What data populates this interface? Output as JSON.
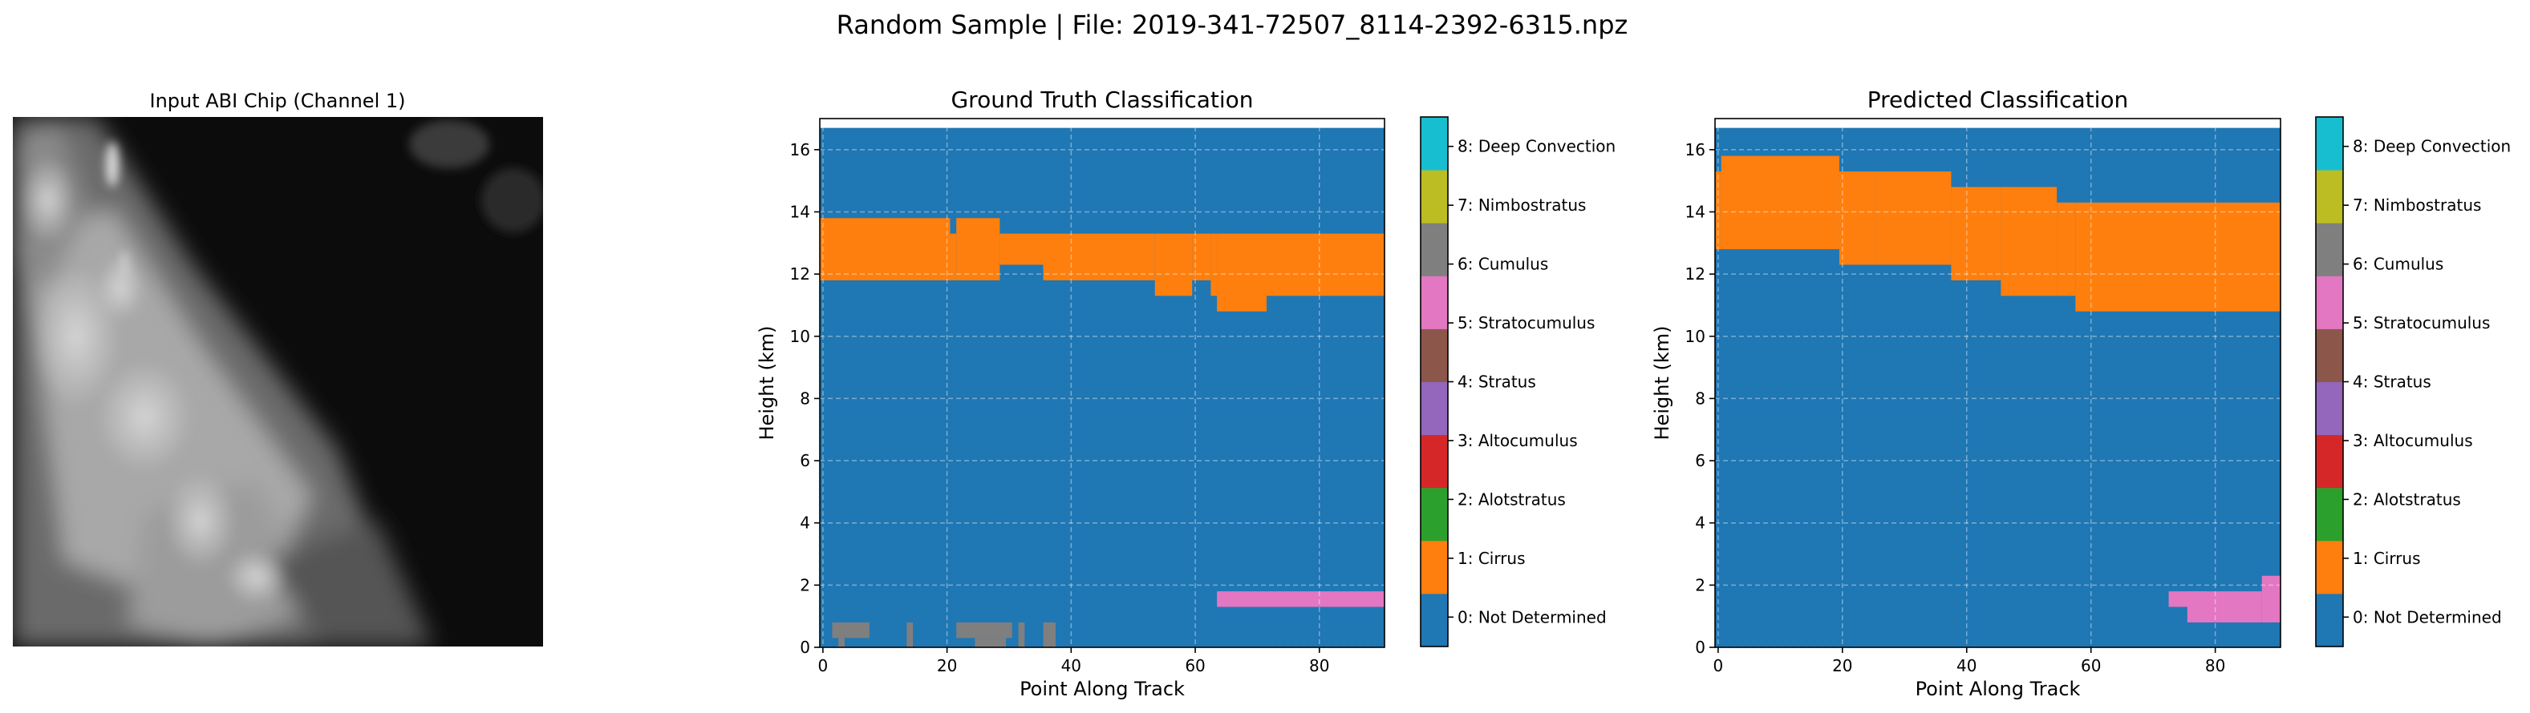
{
  "suptitle": "Random Sample | File: 2019-341-72507_8114-2392-6315.npz",
  "input_panel": {
    "title": "Input ABI Chip (Channel 1)",
    "colormap": "gray"
  },
  "class_colors": [
    "#1f77b4",
    "#ff7f0e",
    "#2ca02c",
    "#d62728",
    "#9467bd",
    "#8c564b",
    "#e377c2",
    "#7f7f7f",
    "#bcbd22",
    "#17becf"
  ],
  "colorbar_labels": [
    "0: Not Determined",
    "1: Cirrus",
    "2: Alotstratus",
    "3: Altocumulus",
    "4: Stratus",
    "5: Stratocumulus",
    "6: Cumulus",
    "7: Nimbostratus",
    "8: Deep Convection"
  ],
  "chart_data": [
    {
      "type": "heatmap",
      "title": "Ground Truth Classification",
      "xlabel": "Point Along Track",
      "ylabel": "Height (km)",
      "xlim": [
        -0.5,
        90.5
      ],
      "ylim": [
        0,
        17
      ],
      "xticks": [
        0,
        20,
        40,
        60,
        80
      ],
      "yticks": [
        0,
        2,
        4,
        6,
        8,
        10,
        12,
        14,
        16
      ],
      "xtick_labels": [
        "0",
        "20",
        "40",
        "60",
        "80"
      ],
      "ytick_labels": [
        "0",
        "2",
        "4",
        "6",
        "8",
        "10",
        "12",
        "14",
        "16"
      ],
      "grid": true,
      "background_class": 0,
      "top_height_km": 16.7,
      "regions": [
        {
          "class": 1,
          "x0": -0.5,
          "x1": 20.5,
          "y0": 11.8,
          "y1": 13.8
        },
        {
          "class": 1,
          "x0": 20.5,
          "x1": 21.5,
          "y0": 11.8,
          "y1": 13.3
        },
        {
          "class": 1,
          "x0": 21.5,
          "x1": 28.5,
          "y0": 11.8,
          "y1": 13.8
        },
        {
          "class": 1,
          "x0": 28.5,
          "x1": 35.5,
          "y0": 12.3,
          "y1": 13.3
        },
        {
          "class": 1,
          "x0": 35.5,
          "x1": 53.5,
          "y0": 11.8,
          "y1": 13.3
        },
        {
          "class": 1,
          "x0": 53.5,
          "x1": 59.5,
          "y0": 11.3,
          "y1": 13.3
        },
        {
          "class": 1,
          "x0": 59.5,
          "x1": 62.5,
          "y0": 11.8,
          "y1": 13.3
        },
        {
          "class": 1,
          "x0": 62.5,
          "x1": 63.5,
          "y0": 11.3,
          "y1": 13.3
        },
        {
          "class": 1,
          "x0": 63.5,
          "x1": 71.5,
          "y0": 10.8,
          "y1": 13.3
        },
        {
          "class": 1,
          "x0": 71.5,
          "x1": 90.5,
          "y0": 11.3,
          "y1": 13.3
        },
        {
          "class": 6,
          "x0": 63.5,
          "x1": 90.5,
          "y0": 1.3,
          "y1": 1.8
        },
        {
          "class": 7,
          "x0": 1.5,
          "x1": 7.5,
          "y0": 0.3,
          "y1": 0.8
        },
        {
          "class": 7,
          "x0": 2.5,
          "x1": 3.5,
          "y0": 0.0,
          "y1": 0.3
        },
        {
          "class": 7,
          "x0": 13.5,
          "x1": 14.5,
          "y0": 0.0,
          "y1": 0.8
        },
        {
          "class": 7,
          "x0": 21.5,
          "x1": 30.5,
          "y0": 0.3,
          "y1": 0.8
        },
        {
          "class": 7,
          "x0": 24.5,
          "x1": 29.5,
          "y0": 0.0,
          "y1": 0.3
        },
        {
          "class": 7,
          "x0": 31.5,
          "x1": 32.5,
          "y0": 0.0,
          "y1": 0.8
        },
        {
          "class": 7,
          "x0": 35.5,
          "x1": 37.5,
          "y0": 0.0,
          "y1": 0.8
        }
      ]
    },
    {
      "type": "heatmap",
      "title": "Predicted Classification",
      "xlabel": "Point Along Track",
      "ylabel": "Height (km)",
      "xlim": [
        -0.5,
        90.5
      ],
      "ylim": [
        0,
        17
      ],
      "xticks": [
        0,
        20,
        40,
        60,
        80
      ],
      "yticks": [
        0,
        2,
        4,
        6,
        8,
        10,
        12,
        14,
        16
      ],
      "xtick_labels": [
        "0",
        "20",
        "40",
        "60",
        "80"
      ],
      "ytick_labels": [
        "0",
        "2",
        "4",
        "6",
        "8",
        "10",
        "12",
        "14",
        "16"
      ],
      "grid": true,
      "background_class": 0,
      "top_height_km": 16.7,
      "regions": [
        {
          "class": 1,
          "x0": -0.5,
          "x1": 0.5,
          "y0": 12.8,
          "y1": 15.3
        },
        {
          "class": 1,
          "x0": 0.5,
          "x1": 19.5,
          "y0": 12.8,
          "y1": 15.8
        },
        {
          "class": 1,
          "x0": 19.5,
          "x1": 25.5,
          "y0": 12.3,
          "y1": 15.3
        },
        {
          "class": 1,
          "x0": 25.5,
          "x1": 37.5,
          "y0": 12.3,
          "y1": 15.3
        },
        {
          "class": 1,
          "x0": 37.5,
          "x1": 45.5,
          "y0": 11.8,
          "y1": 14.8
        },
        {
          "class": 1,
          "x0": 45.5,
          "x1": 54.5,
          "y0": 11.3,
          "y1": 14.8
        },
        {
          "class": 1,
          "x0": 54.5,
          "x1": 57.5,
          "y0": 11.3,
          "y1": 14.3
        },
        {
          "class": 1,
          "x0": 57.5,
          "x1": 90.5,
          "y0": 10.8,
          "y1": 14.3
        },
        {
          "class": 6,
          "x0": 72.5,
          "x1": 78.5,
          "y0": 1.3,
          "y1": 1.8
        },
        {
          "class": 6,
          "x0": 75.5,
          "x1": 87.5,
          "y0": 0.8,
          "y1": 1.8
        },
        {
          "class": 6,
          "x0": 87.5,
          "x1": 90.5,
          "y0": 0.8,
          "y1": 2.3
        }
      ]
    }
  ]
}
